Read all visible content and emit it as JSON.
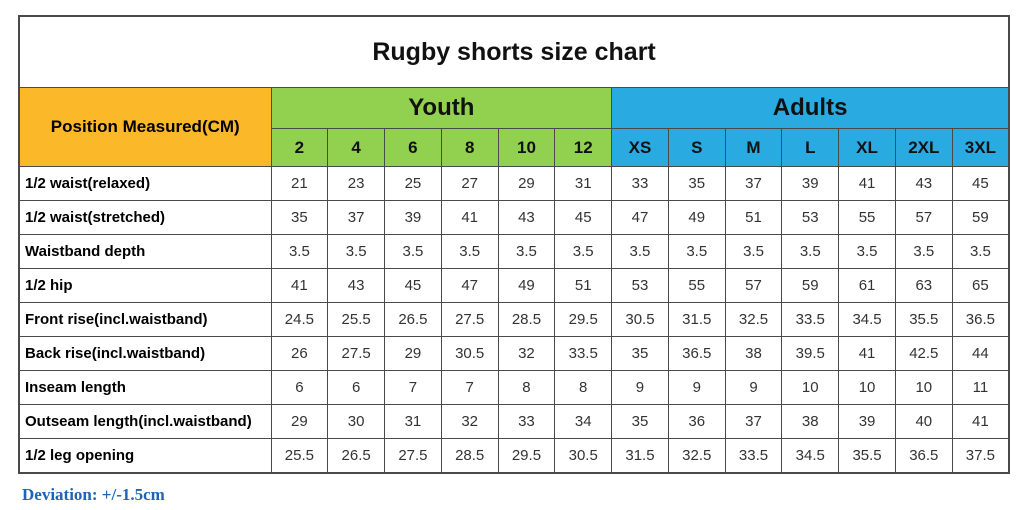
{
  "title": "Rugby shorts size chart",
  "footer": {
    "deviation_note": "Deviation: +/-1.5cm"
  },
  "colors": {
    "corner_header_bg": "#fbb829",
    "youth_bg": "#92d050",
    "adults_bg": "#29abe2",
    "border": "#4a4a4a",
    "deviation_text": "#1f63b5"
  },
  "chart_data": {
    "type": "table",
    "title": "Rugby shorts size chart",
    "corner_header": "Position Measured(CM)",
    "column_groups": [
      {
        "label": "Youth",
        "columns": [
          "2",
          "4",
          "6",
          "8",
          "10",
          "12"
        ]
      },
      {
        "label": "Adults",
        "columns": [
          "XS",
          "S",
          "M",
          "L",
          "XL",
          "2XL",
          "3XL"
        ]
      }
    ],
    "rows": [
      {
        "label": "1/2 waist(relaxed)",
        "values": [
          "21",
          "23",
          "25",
          "27",
          "29",
          "31",
          "33",
          "35",
          "37",
          "39",
          "41",
          "43",
          "45"
        ]
      },
      {
        "label": "1/2 waist(stretched)",
        "values": [
          "35",
          "37",
          "39",
          "41",
          "43",
          "45",
          "47",
          "49",
          "51",
          "53",
          "55",
          "57",
          "59"
        ]
      },
      {
        "label": "Waistband depth",
        "values": [
          "3.5",
          "3.5",
          "3.5",
          "3.5",
          "3.5",
          "3.5",
          "3.5",
          "3.5",
          "3.5",
          "3.5",
          "3.5",
          "3.5",
          "3.5"
        ]
      },
      {
        "label": "1/2 hip",
        "values": [
          "41",
          "43",
          "45",
          "47",
          "49",
          "51",
          "53",
          "55",
          "57",
          "59",
          "61",
          "63",
          "65"
        ]
      },
      {
        "label": "Front rise(incl.waistband)",
        "values": [
          "24.5",
          "25.5",
          "26.5",
          "27.5",
          "28.5",
          "29.5",
          "30.5",
          "31.5",
          "32.5",
          "33.5",
          "34.5",
          "35.5",
          "36.5"
        ]
      },
      {
        "label": "Back rise(incl.waistband)",
        "values": [
          "26",
          "27.5",
          "29",
          "30.5",
          "32",
          "33.5",
          "35",
          "36.5",
          "38",
          "39.5",
          "41",
          "42.5",
          "44"
        ]
      },
      {
        "label": "Inseam length",
        "values": [
          "6",
          "6",
          "7",
          "7",
          "8",
          "8",
          "9",
          "9",
          "9",
          "10",
          "10",
          "10",
          "11"
        ]
      },
      {
        "label": "Outseam length(incl.waistband)",
        "values": [
          "29",
          "30",
          "31",
          "32",
          "33",
          "34",
          "35",
          "36",
          "37",
          "38",
          "39",
          "40",
          "41"
        ]
      },
      {
        "label": "1/2 leg opening",
        "values": [
          "25.5",
          "26.5",
          "27.5",
          "28.5",
          "29.5",
          "30.5",
          "31.5",
          "32.5",
          "33.5",
          "34.5",
          "35.5",
          "36.5",
          "37.5"
        ]
      }
    ],
    "footnote": "Deviation: +/-1.5cm"
  }
}
